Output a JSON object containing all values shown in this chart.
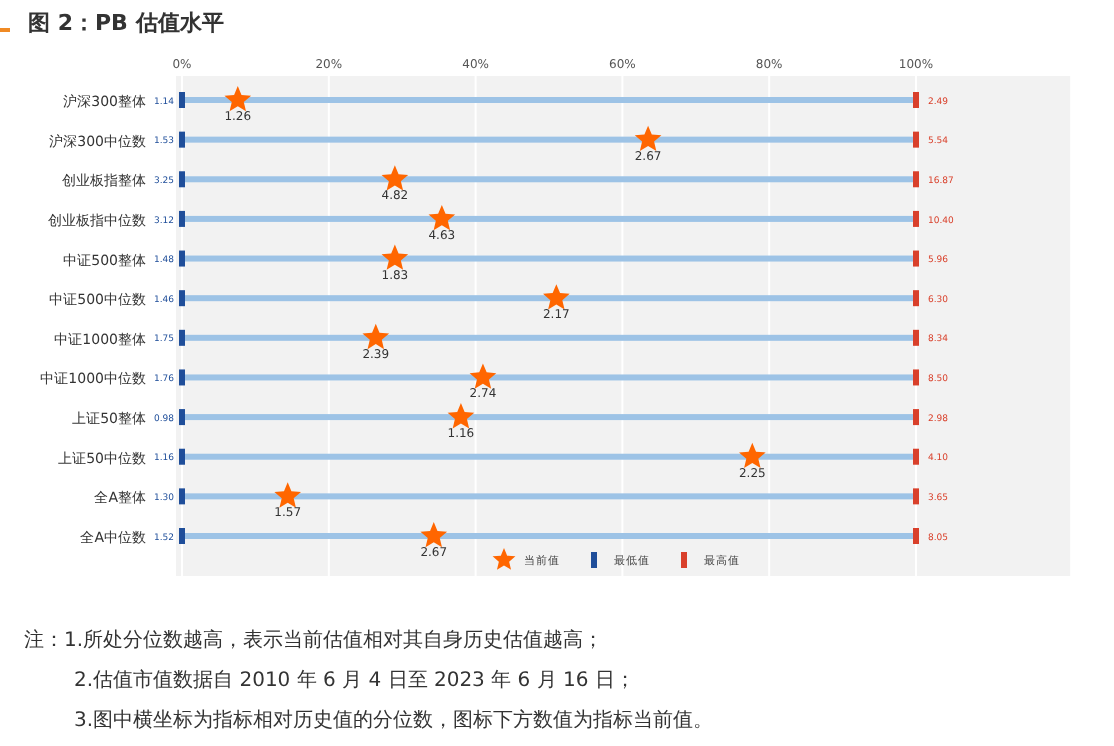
{
  "chart_data": {
    "type": "scatter",
    "orientation": "horizontal",
    "title": "图 2：PB 估值水平",
    "categories": [
      "沪深300整体",
      "沪深300中位数",
      "创业板指整体",
      "创业板指中位数",
      "中证500整体",
      "中证500中位数",
      "中证1000整体",
      "中证1000中位数",
      "上证50整体",
      "上证50中位数",
      "全A整体",
      "全A中位数"
    ],
    "series": [
      {
        "type": "bar",
        "color": "#9dc3e6",
        "values": [
          100,
          100,
          100,
          100,
          100,
          100,
          100,
          100,
          100,
          100,
          100,
          100
        ]
      },
      {
        "name": "当前值",
        "marker": "star",
        "color": "#ff6600",
        "values": [
          7.6,
          63.5,
          29,
          35.4,
          29,
          51,
          26.4,
          41,
          38,
          77.7,
          14.4,
          34.3
        ]
      },
      {
        "name": "最低值",
        "marker": "square",
        "color": "#1f4e9a",
        "values": [
          0,
          0,
          0,
          0,
          0,
          0,
          0,
          0,
          0,
          0,
          0,
          0
        ]
      },
      {
        "name": "最高值",
        "marker": "square",
        "color": "#d9402b",
        "values": [
          100,
          100,
          100,
          100,
          100,
          100,
          100,
          100,
          100,
          100,
          100,
          100
        ]
      }
    ],
    "xlim": [
      0,
      121
    ],
    "xticks": [
      {
        "value": 0,
        "label": "0%"
      },
      {
        "value": 20,
        "label": "20%"
      },
      {
        "value": 40,
        "label": "40%"
      },
      {
        "value": 60,
        "label": "60%"
      },
      {
        "value": 80,
        "label": "80%"
      },
      {
        "value": 100,
        "label": "100%"
      }
    ],
    "grid": "x",
    "legend": "bottom",
    "annotations": [
      {
        "text": "1.26",
        "x": 7.6,
        "y": "沪深300整体"
      },
      {
        "text": "2.67",
        "x": 63.5,
        "y": "沪深300中位数"
      },
      {
        "text": "4.82",
        "x": 29,
        "y": "创业板指整体"
      },
      {
        "text": "4.63",
        "x": 35.4,
        "y": "创业板指中位数"
      },
      {
        "text": "1.83",
        "x": 29,
        "y": "中证500整体"
      },
      {
        "text": "2.17",
        "x": 51,
        "y": "中证500中位数"
      },
      {
        "text": "2.39",
        "x": 26.4,
        "y": "中证1000整体"
      },
      {
        "text": "2.74",
        "x": 41,
        "y": "中证1000中位数"
      },
      {
        "text": "1.16",
        "x": 38,
        "y": "上证50整体"
      },
      {
        "text": "2.25",
        "x": 77.7,
        "y": "上证50中位数"
      },
      {
        "text": "1.57",
        "x": 14.4,
        "y": "全A整体"
      },
      {
        "text": "2.67",
        "x": 34.3,
        "y": "全A中位数"
      },
      {
        "text": "1.14",
        "x": 0,
        "y": "沪深300整体"
      },
      {
        "text": "1.53",
        "x": 0,
        "y": "沪深300中位数"
      },
      {
        "text": "3.25",
        "x": 0,
        "y": "创业板指整体"
      },
      {
        "text": "3.12",
        "x": 0,
        "y": "创业板指中位数"
      },
      {
        "text": "1.48",
        "x": 0,
        "y": "中证500整体"
      },
      {
        "text": "1.46",
        "x": 0,
        "y": "中证500中位数"
      },
      {
        "text": "1.75",
        "x": 0,
        "y": "中证1000整体"
      },
      {
        "text": "1.76",
        "x": 0,
        "y": "中证1000中位数"
      },
      {
        "text": "0.98",
        "x": 0,
        "y": "上证50整体"
      },
      {
        "text": "1.16",
        "x": 0,
        "y": "上证50中位数"
      },
      {
        "text": "1.30",
        "x": 0,
        "y": "全A整体"
      },
      {
        "text": "1.52",
        "x": 0,
        "y": "全A中位数"
      },
      {
        "text": "2.49",
        "x": 100,
        "y": "沪深300整体"
      },
      {
        "text": "5.54",
        "x": 100,
        "y": "沪深300中位数"
      },
      {
        "text": "16.87",
        "x": 100,
        "y": "创业板指整体"
      },
      {
        "text": "10.40",
        "x": 100,
        "y": "创业板指中位数"
      },
      {
        "text": "5.96",
        "x": 100,
        "y": "中证500整体"
      },
      {
        "text": "6.30",
        "x": 100,
        "y": "中证500中位数"
      },
      {
        "text": "8.34",
        "x": 100,
        "y": "中证1000整体"
      },
      {
        "text": "8.50",
        "x": 100,
        "y": "中证1000中位数"
      },
      {
        "text": "2.98",
        "x": 100,
        "y": "上证50整体"
      },
      {
        "text": "4.10",
        "x": 100,
        "y": "上证50中位数"
      },
      {
        "text": "3.65",
        "x": 100,
        "y": "全A整体"
      },
      {
        "text": "8.05",
        "x": 100,
        "y": "全A中位数"
      },
      "注：1.所处分位数越高，表示当前估值相对其自身历史估值越高；",
      "2.估值市值数据自 2010 年 6 月 4 日至 2023 年 6 月 16 日；",
      "3.图中横坐标为指标相对历史值的分位数，图标下方数值为指标当前值。"
    ]
  }
}
